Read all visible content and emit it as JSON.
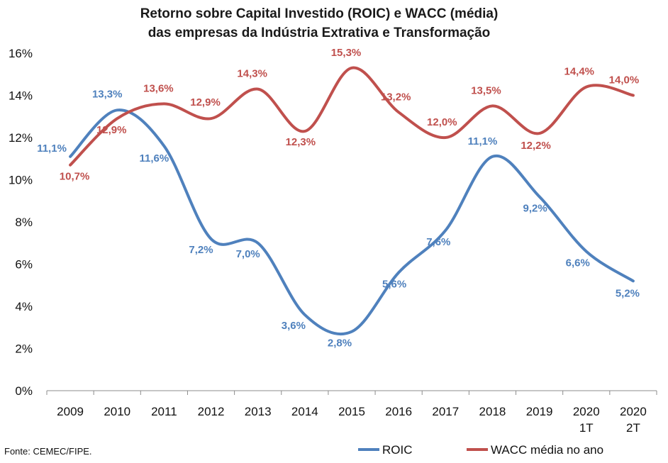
{
  "chart_data": {
    "type": "line",
    "title_lines": [
      "Retorno sobre Capital Investido (ROIC) e WACC (média)",
      "das empresas da Indústria Extrativa e Transformação"
    ],
    "categories": [
      [
        "2009"
      ],
      [
        "2010"
      ],
      [
        "2011"
      ],
      [
        "2012"
      ],
      [
        "2013"
      ],
      [
        "2014"
      ],
      [
        "2015"
      ],
      [
        "2016"
      ],
      [
        "2017"
      ],
      [
        "2018"
      ],
      [
        "2019"
      ],
      [
        "2020",
        "1T"
      ],
      [
        "2020",
        "2T"
      ]
    ],
    "ylim": [
      0,
      16
    ],
    "y_ticks": [
      "0%",
      "2%",
      "4%",
      "6%",
      "8%",
      "10%",
      "12%",
      "14%",
      "16%"
    ],
    "y_tick_values": [
      0,
      2,
      4,
      6,
      8,
      10,
      12,
      14,
      16
    ],
    "grid": false,
    "legend_position": "bottom",
    "source": "Fonte: CEMEC/FIPE.",
    "series": [
      {
        "name": "ROIC",
        "color": "#4f81bd",
        "values": [
          11.1,
          13.3,
          11.6,
          7.2,
          7.0,
          3.6,
          2.8,
          5.6,
          7.6,
          11.1,
          9.2,
          6.6,
          5.2
        ],
        "labels": [
          "11,1%",
          "13,3%",
          "11,6%",
          "7,2%",
          "7,0%",
          "3,6%",
          "2,8%",
          "5,6%",
          "7,6%",
          "11,1%",
          "9,2%",
          "6,6%",
          "5,2%"
        ]
      },
      {
        "name": "WACC média no ano",
        "color": "#c0504d",
        "values": [
          10.7,
          12.9,
          13.6,
          12.9,
          14.3,
          12.3,
          15.3,
          13.2,
          12.0,
          13.5,
          12.2,
          14.4,
          14.0
        ],
        "labels": [
          "10,7%",
          "12,9%",
          "13,6%",
          "12,9%",
          "14,3%",
          "12,3%",
          "15,3%",
          "13,2%",
          "12,0%",
          "13,5%",
          "12,2%",
          "14,4%",
          "14,0%"
        ]
      }
    ]
  }
}
